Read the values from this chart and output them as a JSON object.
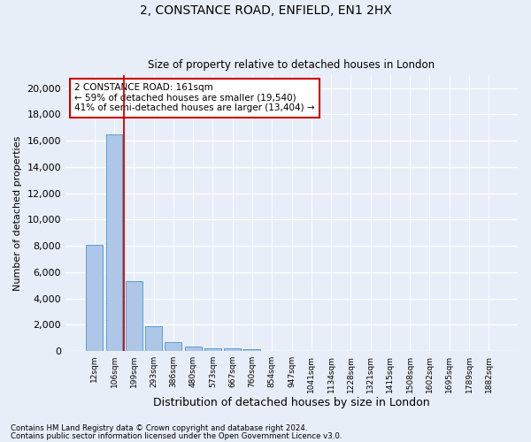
{
  "title_line1": "2, CONSTANCE ROAD, ENFIELD, EN1 2HX",
  "title_line2": "Size of property relative to detached houses in London",
  "xlabel": "Distribution of detached houses by size in London",
  "ylabel": "Number of detached properties",
  "annotation_title": "2 CONSTANCE ROAD: 161sqm",
  "annotation_line2": "← 59% of detached houses are smaller (19,540)",
  "annotation_line3": "41% of semi-detached houses are larger (13,404) →",
  "footer_line1": "Contains HM Land Registry data © Crown copyright and database right 2024.",
  "footer_line2": "Contains public sector information licensed under the Open Government Licence v3.0.",
  "bar_color": "#aec6e8",
  "bar_edge_color": "#5a9fd4",
  "vline_color": "#cc0000",
  "annotation_box_color": "#cc0000",
  "background_color": "#e8eef8",
  "categories": [
    "12sqm",
    "106sqm",
    "199sqm",
    "293sqm",
    "386sqm",
    "480sqm",
    "573sqm",
    "667sqm",
    "760sqm",
    "854sqm",
    "947sqm",
    "1041sqm",
    "1134sqm",
    "1228sqm",
    "1321sqm",
    "1415sqm",
    "1508sqm",
    "1602sqm",
    "1695sqm",
    "1789sqm",
    "1882sqm"
  ],
  "values": [
    8050,
    16500,
    5300,
    1850,
    680,
    320,
    210,
    175,
    140,
    0,
    0,
    0,
    0,
    0,
    0,
    0,
    0,
    0,
    0,
    0,
    0
  ],
  "ylim": [
    0,
    21000
  ],
  "yticks": [
    0,
    2000,
    4000,
    6000,
    8000,
    10000,
    12000,
    14000,
    16000,
    18000,
    20000
  ]
}
